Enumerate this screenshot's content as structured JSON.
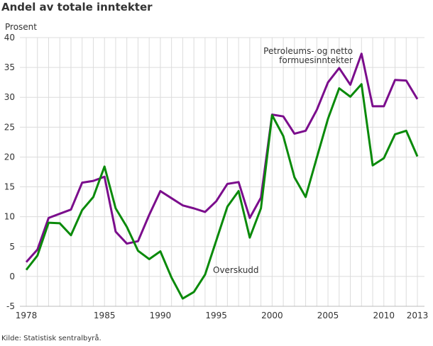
{
  "title": "Andel av totale inntekter",
  "source": "Kilde: Statistisk sentralbyrå.",
  "chart_data": {
    "type": "line",
    "title": "Andel av totale inntekter",
    "ylabel": "Prosent",
    "xlabel": "",
    "ylim": [
      -5,
      40
    ],
    "yticks": [
      -5,
      0,
      5,
      10,
      15,
      20,
      25,
      30,
      35,
      40
    ],
    "xlim": [
      1978,
      2013
    ],
    "xticks": [
      1978,
      1985,
      1990,
      1995,
      2000,
      2005,
      2010,
      2013
    ],
    "grid": true,
    "x": [
      1978,
      1979,
      1980,
      1981,
      1982,
      1983,
      1984,
      1985,
      1986,
      1987,
      1988,
      1989,
      1990,
      1991,
      1992,
      1993,
      1994,
      1995,
      1996,
      1997,
      1998,
      1999,
      2000,
      2001,
      2002,
      2003,
      2004,
      2005,
      2006,
      2007,
      2008,
      2009,
      2010,
      2011,
      2012,
      2013
    ],
    "series": [
      {
        "name": "Petroleums- og netto formuesinntekter",
        "label_lines": [
          "Petroleums- og netto",
          "formuesinntekter"
        ],
        "color": "#7b0d8c",
        "values": [
          2.4,
          4.5,
          9.8,
          10.5,
          11.2,
          15.7,
          16.0,
          16.7,
          7.5,
          5.5,
          5.9,
          10.3,
          14.3,
          13.1,
          11.9,
          11.4,
          10.8,
          12.6,
          15.5,
          15.8,
          9.8,
          13.2,
          27.1,
          26.8,
          23.9,
          24.4,
          27.9,
          32.5,
          34.9,
          32.1,
          37.3,
          28.5,
          28.5,
          32.9,
          32.8,
          29.7
        ]
      },
      {
        "name": "Overskudd",
        "label_lines": [
          "Overskudd"
        ],
        "color": "#0a8a0a",
        "values": [
          1.1,
          3.5,
          9.0,
          8.9,
          6.9,
          11.1,
          13.3,
          18.4,
          11.4,
          8.3,
          4.3,
          2.9,
          4.2,
          -0.2,
          -3.7,
          -2.6,
          0.3,
          6.0,
          11.7,
          14.3,
          6.5,
          11.4,
          27.0,
          23.5,
          16.6,
          13.3,
          19.9,
          26.4,
          31.5,
          30.1,
          32.2,
          18.6,
          19.8,
          23.8,
          24.4,
          20.1
        ]
      }
    ]
  }
}
